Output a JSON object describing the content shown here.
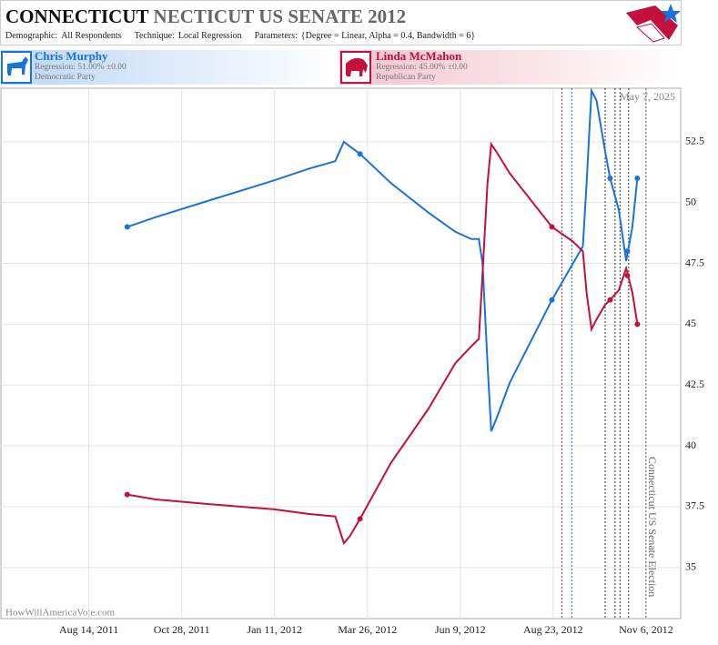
{
  "chart_data": {
    "type": "line",
    "title_state": "CONNECTICUT",
    "title": "NECTICUT US SENATE 2012",
    "parameters": [
      {
        "label": "Demographic:",
        "value": "All Respondents"
      },
      {
        "label": "Technique:",
        "value": "Local Regression"
      },
      {
        "label": "Parameters:",
        "value": "{Degree = Linear, Alpha = 0.4, Bandwidth = 6}"
      }
    ],
    "date_stamp": "May 7, 2025",
    "source": "HowWillAmericaVote.com",
    "x": [
      "2011-09-14",
      "2011-10-07",
      "2011-11-20",
      "2012-01-10",
      "2012-02-08",
      "2012-02-29",
      "2012-03-07",
      "2012-03-12",
      "2012-03-20",
      "2012-04-14",
      "2012-05-14",
      "2012-06-05",
      "2012-06-18",
      "2012-06-24",
      "2012-06-27",
      "2012-07-01",
      "2012-07-04",
      "2012-07-08",
      "2012-07-19",
      "2012-08-22",
      "2012-09-08",
      "2012-09-16",
      "2012-09-19",
      "2012-09-23",
      "2012-09-27",
      "2012-10-04",
      "2012-10-08",
      "2012-10-15",
      "2012-10-21",
      "2012-10-22",
      "2012-10-26",
      "2012-10-30"
    ],
    "poll_x": [
      "2011-09-14",
      "2012-03-20",
      "2012-08-22",
      "2012-10-08",
      "2012-10-22",
      "2012-10-30"
    ],
    "series": [
      {
        "name": "Chris Murphy",
        "regression": "Regression: 51.00% ±0.00",
        "party": "Democratic Party",
        "color": "#1a73d8",
        "values": [
          49.0,
          49.4,
          50.1,
          50.9,
          51.4,
          51.7,
          52.5,
          52.3,
          52.0,
          50.8,
          49.6,
          48.8,
          48.5,
          48.5,
          47.5,
          43.4,
          40.6,
          41.1,
          42.6,
          46.0,
          47.5,
          48.2,
          50.8,
          54.6,
          54.2,
          52.1,
          51.0,
          49.7,
          47.6,
          47.9,
          49.0,
          51.0
        ],
        "poll_values": [
          49,
          52,
          46,
          51,
          48,
          51
        ]
      },
      {
        "name": "Linda McMahon",
        "regression": "Regression: 45.00% ±0.00",
        "party": "Republican Party",
        "color": "#c3103c",
        "values": [
          38.0,
          37.8,
          37.6,
          37.4,
          37.2,
          37.1,
          36.0,
          36.3,
          37.0,
          39.3,
          41.5,
          43.4,
          44.1,
          44.4,
          47.1,
          50.8,
          52.4,
          52.1,
          51.2,
          49.0,
          48.4,
          48.0,
          46.3,
          44.8,
          45.2,
          45.8,
          46.0,
          46.4,
          47.3,
          47.1,
          46.3,
          45.0
        ],
        "poll_values": [
          38,
          37,
          49,
          46,
          47,
          45
        ]
      }
    ],
    "event_lines": [
      {
        "x": "2012-08-30",
        "color": "#c3103c"
      },
      {
        "x": "2012-09-07",
        "color": "#1a73d8"
      },
      {
        "x": "2012-10-04",
        "color": "#333333"
      },
      {
        "x": "2012-10-12",
        "color": "#333333"
      },
      {
        "x": "2012-10-16",
        "color": "#333333"
      },
      {
        "x": "2012-10-23",
        "color": "#333333"
      },
      {
        "x": "2012-11-06",
        "color": "#555555",
        "label": "Connecticut US Senate Election"
      }
    ],
    "xlim": [
      "2011-06-04",
      "2012-12-04"
    ],
    "xticks": [
      {
        "value": "2011-08-14",
        "label": "Aug 14, 2011"
      },
      {
        "value": "2011-10-28",
        "label": "Oct 28, 2011"
      },
      {
        "value": "2012-01-11",
        "label": "Jan 11, 2012"
      },
      {
        "value": "2012-03-26",
        "label": "Mar 26, 2012"
      },
      {
        "value": "2012-06-09",
        "label": "Jun 9, 2012"
      },
      {
        "value": "2012-08-23",
        "label": "Aug 23, 2012"
      },
      {
        "value": "2012-11-06",
        "label": "Nov 6, 2012"
      }
    ],
    "ylim": [
      32.9,
      54.7
    ],
    "yticks": [
      35,
      37.5,
      40,
      42.5,
      45,
      47.5,
      50,
      52.5
    ],
    "grid": true
  }
}
